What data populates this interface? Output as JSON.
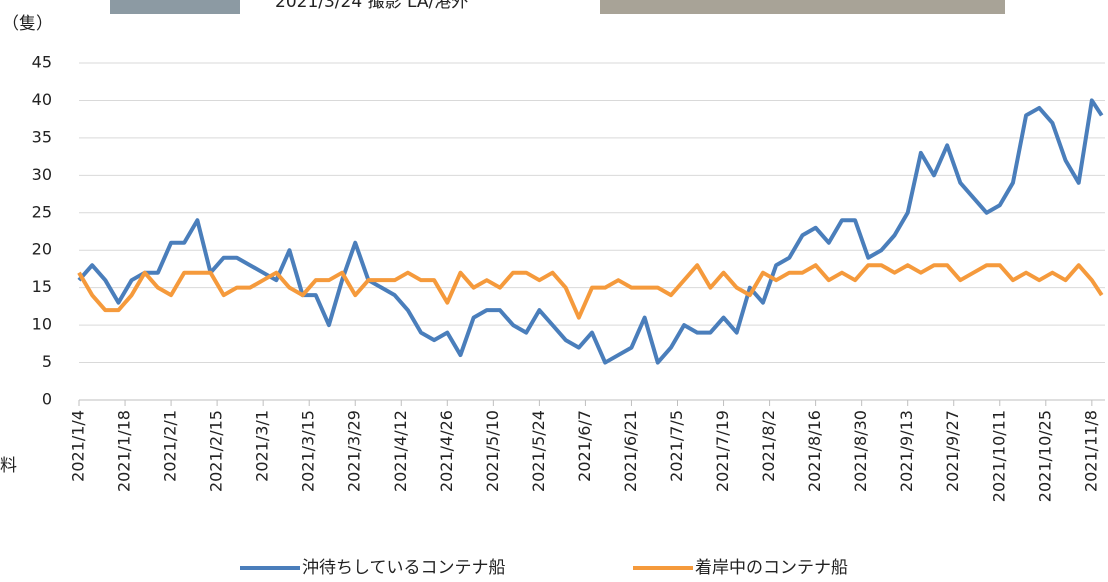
{
  "unit_label": "（隻）",
  "photo_caption": "2021/3/24 撮影 LA/港外",
  "side_note": "料",
  "chart_data": {
    "type": "line",
    "x": [
      "2021/1/4",
      "2021/1/8",
      "2021/1/12",
      "2021/1/16",
      "2021/1/20",
      "2021/1/24",
      "2021/1/28",
      "2021/2/1",
      "2021/2/5",
      "2021/2/9",
      "2021/2/13",
      "2021/2/17",
      "2021/2/21",
      "2021/2/25",
      "2021/3/1",
      "2021/3/5",
      "2021/3/9",
      "2021/3/13",
      "2021/3/17",
      "2021/3/21",
      "2021/3/25",
      "2021/3/29",
      "2021/4/2",
      "2021/4/6",
      "2021/4/10",
      "2021/4/14",
      "2021/4/18",
      "2021/4/22",
      "2021/4/26",
      "2021/4/30",
      "2021/5/4",
      "2021/5/8",
      "2021/5/12",
      "2021/5/16",
      "2021/5/20",
      "2021/5/24",
      "2021/5/28",
      "2021/6/1",
      "2021/6/5",
      "2021/6/9",
      "2021/6/13",
      "2021/6/17",
      "2021/6/21",
      "2021/6/25",
      "2021/6/29",
      "2021/7/3",
      "2021/7/7",
      "2021/7/11",
      "2021/7/15",
      "2021/7/19",
      "2021/7/23",
      "2021/7/27",
      "2021/7/31",
      "2021/8/4",
      "2021/8/8",
      "2021/8/12",
      "2021/8/16",
      "2021/8/20",
      "2021/8/24",
      "2021/8/28",
      "2021/9/1",
      "2021/9/5",
      "2021/9/9",
      "2021/9/13",
      "2021/9/17",
      "2021/9/21",
      "2021/9/25",
      "2021/9/29",
      "2021/10/3",
      "2021/10/7",
      "2021/10/11",
      "2021/10/15",
      "2021/10/19",
      "2021/10/23",
      "2021/10/27",
      "2021/10/31",
      "2021/11/4",
      "2021/11/8",
      "2021/11/11"
    ],
    "series": [
      {
        "name": "沖待ちしているコンテナ船",
        "color": "#4a7ebb",
        "values": [
          16,
          18,
          16,
          13,
          16,
          17,
          17,
          21,
          21,
          24,
          17,
          19,
          19,
          18,
          17,
          16,
          20,
          14,
          14,
          10,
          16,
          21,
          16,
          15,
          14,
          12,
          9,
          8,
          9,
          6,
          11,
          12,
          12,
          10,
          9,
          12,
          10,
          8,
          7,
          9,
          5,
          6,
          7,
          11,
          5,
          7,
          10,
          9,
          9,
          11,
          9,
          15,
          13,
          18,
          19,
          22,
          23,
          21,
          24,
          24,
          19,
          20,
          22,
          25,
          33,
          30,
          34,
          29,
          27,
          25,
          26,
          29,
          38,
          39,
          37,
          32,
          29,
          40,
          38
        ]
      },
      {
        "name": "着岸中のコンテナ船",
        "color": "#f59a3c",
        "values": [
          17,
          14,
          12,
          12,
          14,
          17,
          15,
          14,
          17,
          17,
          17,
          14,
          15,
          15,
          16,
          17,
          15,
          14,
          16,
          16,
          17,
          14,
          16,
          16,
          16,
          17,
          16,
          16,
          13,
          17,
          15,
          16,
          15,
          17,
          17,
          16,
          17,
          15,
          11,
          15,
          15,
          16,
          15,
          15,
          15,
          14,
          16,
          18,
          15,
          17,
          15,
          14,
          17,
          16,
          17,
          17,
          18,
          16,
          17,
          16,
          18,
          18,
          17,
          18,
          17,
          18,
          18,
          16,
          17,
          18,
          18,
          16,
          17,
          16,
          17,
          16,
          18,
          16,
          14
        ]
      }
    ],
    "xlim": [
      "2021/1/4",
      "2021/11/12"
    ],
    "xticks": [
      "2021/1/4",
      "2021/1/18",
      "2021/2/1",
      "2021/2/15",
      "2021/3/1",
      "2021/3/15",
      "2021/3/29",
      "2021/4/12",
      "2021/4/26",
      "2021/5/10",
      "2021/5/24",
      "2021/6/7",
      "2021/6/21",
      "2021/7/5",
      "2021/7/19",
      "2021/8/2",
      "2021/8/16",
      "2021/8/30",
      "2021/9/13",
      "2021/9/27",
      "2021/10/11",
      "2021/10/25",
      "2021/11/8"
    ],
    "ylim": [
      0,
      45
    ],
    "yticks": [
      0,
      5,
      10,
      15,
      20,
      25,
      30,
      35,
      40,
      45
    ],
    "grid": true,
    "legend": "bottom"
  }
}
